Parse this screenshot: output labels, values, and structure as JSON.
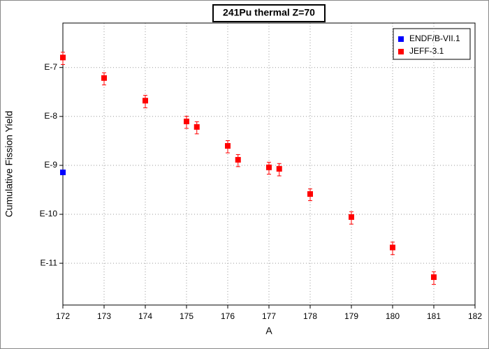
{
  "chart_data": {
    "type": "scatter",
    "title": "241Pu thermal Z=70",
    "xlabel": "A",
    "ylabel": "Cumulative Fission Yield",
    "xlim": [
      172,
      182
    ],
    "xticks": [
      172,
      173,
      174,
      175,
      176,
      177,
      178,
      179,
      180,
      181,
      182
    ],
    "ylim": [
      1.4e-12,
      8.1e-07
    ],
    "log_y": true,
    "yticks": [
      {
        "value": 1e-11,
        "label": "E-11"
      },
      {
        "value": 1e-10,
        "label": "E-10"
      },
      {
        "value": 1e-09,
        "label": "E-9"
      },
      {
        "value": 1e-08,
        "label": "E-8"
      },
      {
        "value": 1e-07,
        "label": "E-7"
      }
    ],
    "grid": true,
    "legend": "upper right",
    "series": [
      {
        "name": "ENDF/B-VII.1",
        "color": "#0000ff",
        "x": [
          172
        ],
        "values": [
          7.2e-10
        ]
      },
      {
        "name": "JEFF-3.1",
        "color": "#ff0000",
        "x": [
          172,
          173,
          174,
          175,
          175.25,
          176,
          176.25,
          177,
          177.25,
          178,
          179,
          180,
          181
        ],
        "values": [
          1.6e-07,
          6.1e-08,
          2.1e-08,
          7.9e-09,
          6.1e-09,
          2.5e-09,
          1.3e-09,
          9.1e-10,
          8.5e-10,
          2.6e-10,
          8.8e-11,
          2.1e-11,
          5.2e-12
        ],
        "errors": [
          4.5e-08,
          1.7e-08,
          6e-09,
          2.2e-09,
          1.7e-09,
          7e-10,
          3.6e-10,
          2.5e-10,
          2.4e-10,
          7e-11,
          2.5e-11,
          6e-12,
          1.5e-12
        ]
      }
    ]
  }
}
